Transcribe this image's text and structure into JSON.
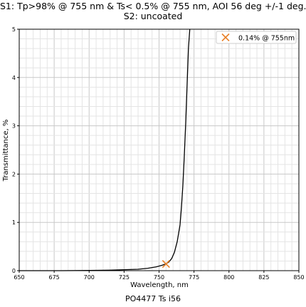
{
  "chart_data": {
    "type": "line",
    "title": "S1: Tp>98% @ 755 nm & Ts< 0.5% @ 755 nm, AOI 56 deg +/-1 deg.",
    "subtitle": "S2: uncoated",
    "xlabel": "Wavelength, nm",
    "ylabel": "Transmittance, %",
    "caption": "PO4477 Ts i56",
    "xlim": [
      650,
      850
    ],
    "ylim": [
      0,
      5
    ],
    "xticks": [
      "650",
      "675",
      "700",
      "725",
      "750",
      "775",
      "800",
      "825",
      "850"
    ],
    "yticks": [
      "0",
      "1",
      "2",
      "3",
      "4",
      "5"
    ],
    "grid": true,
    "legend_position": "top-right",
    "legend": [
      {
        "label": "0.14% @ 755nm",
        "marker": "x",
        "color": "#e8822a"
      }
    ],
    "marker_point": {
      "x": 755,
      "y": 0.14
    },
    "series": [
      {
        "color": "#000000",
        "x": [
          650,
          680,
          700,
          715,
          725,
          735,
          742,
          748,
          752,
          755,
          757,
          759,
          761,
          763,
          765,
          766,
          767,
          768,
          769,
          770,
          771,
          772
        ],
        "y": [
          0.0,
          0.0,
          0.005,
          0.01,
          0.02,
          0.03,
          0.05,
          0.08,
          0.11,
          0.14,
          0.18,
          0.25,
          0.38,
          0.6,
          0.95,
          1.3,
          1.75,
          2.35,
          3.0,
          3.8,
          4.6,
          5.0
        ]
      }
    ]
  }
}
